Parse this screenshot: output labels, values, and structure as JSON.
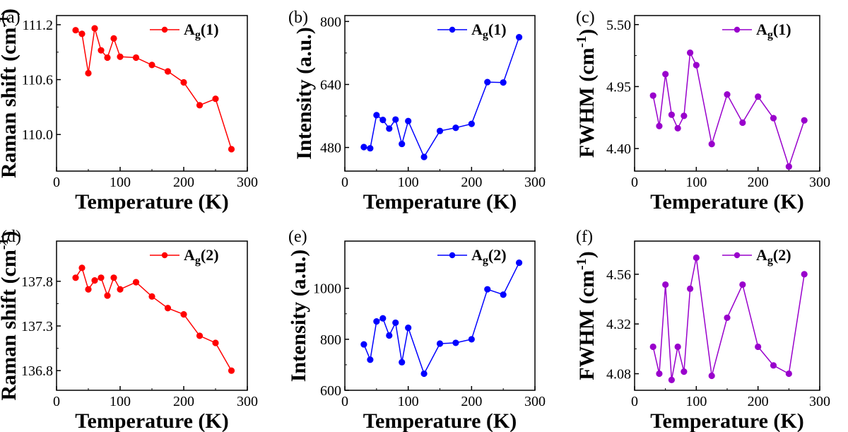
{
  "chart_data": [
    {
      "panel": "(a)",
      "type": "line",
      "title": "",
      "xlabel": "Temperature (K)",
      "ylabel": "Raman shift (cm",
      "ylabel_sup": "-1",
      "ylabel_suffix": ")",
      "xlim": [
        0,
        300
      ],
      "ylim": [
        109.6,
        111.3
      ],
      "xticks": [
        0,
        100,
        200,
        300
      ],
      "yticks": [
        110.0,
        110.6,
        111.2
      ],
      "ytick_labels": [
        "110.0",
        "110.6",
        "111.2"
      ],
      "legend": {
        "main": "A",
        "sub": "g",
        "suffix": "(1)",
        "position": "top-right"
      },
      "color": "#ff0000",
      "x": [
        30,
        40,
        50,
        60,
        70,
        80,
        90,
        100,
        125,
        150,
        175,
        200,
        225,
        250,
        275
      ],
      "y": [
        111.14,
        111.1,
        110.67,
        111.16,
        110.92,
        110.84,
        111.05,
        110.85,
        110.84,
        110.76,
        110.69,
        110.57,
        110.32,
        110.39,
        109.84
      ]
    },
    {
      "panel": "(b)",
      "type": "line",
      "title": "",
      "xlabel": "Temperature (K)",
      "ylabel": "Intensity (a.u.)",
      "ylabel_sup": "",
      "ylabel_suffix": "",
      "xlim": [
        0,
        300
      ],
      "ylim": [
        420,
        815
      ],
      "xticks": [
        0,
        100,
        200,
        300
      ],
      "yticks": [
        480,
        640,
        800
      ],
      "ytick_labels": [
        "480",
        "640",
        "800"
      ],
      "legend": {
        "main": "A",
        "sub": "g",
        "suffix": "(1)",
        "position": "top-right"
      },
      "color": "#0000ff",
      "x": [
        30,
        40,
        50,
        60,
        70,
        80,
        90,
        100,
        125,
        150,
        175,
        200,
        225,
        250,
        275
      ],
      "y": [
        481,
        478,
        562,
        550,
        528,
        551,
        489,
        547,
        456,
        522,
        530,
        540,
        646,
        645,
        760
      ]
    },
    {
      "panel": "(c)",
      "type": "line",
      "title": "",
      "xlabel": "Temperature (K)",
      "ylabel": "FWHM (cm",
      "ylabel_sup": "-1",
      "ylabel_suffix": ")",
      "xlim": [
        0,
        300
      ],
      "ylim": [
        4.2,
        5.58
      ],
      "xticks": [
        0,
        100,
        200,
        300
      ],
      "yticks": [
        4.4,
        4.95,
        5.5
      ],
      "ytick_labels": [
        "4.40",
        "4.95",
        "5.50"
      ],
      "legend": {
        "main": "A",
        "sub": "g",
        "suffix": "(1)",
        "position": "top-right"
      },
      "color": "#9900cc",
      "x": [
        30,
        40,
        50,
        60,
        70,
        80,
        90,
        100,
        125,
        150,
        175,
        200,
        225,
        250,
        275
      ],
      "y": [
        4.87,
        4.6,
        5.06,
        4.7,
        4.58,
        4.69,
        5.25,
        5.14,
        4.44,
        4.88,
        4.63,
        4.86,
        4.67,
        4.24,
        4.65
      ]
    },
    {
      "panel": "(d)",
      "type": "line",
      "title": "",
      "xlabel": "Temperature (K)",
      "ylabel": "Raman shift (cm",
      "ylabel_sup": "-1",
      "ylabel_suffix": ")",
      "xlim": [
        0,
        300
      ],
      "ylim": [
        136.58,
        138.25
      ],
      "xticks": [
        0,
        100,
        200,
        300
      ],
      "yticks": [
        136.8,
        137.3,
        137.8
      ],
      "ytick_labels": [
        "136.8",
        "137.3",
        "137.8"
      ],
      "legend": {
        "main": "A",
        "sub": "g",
        "suffix": "(2)",
        "position": "top-right"
      },
      "color": "#ff0000",
      "x": [
        30,
        40,
        50,
        60,
        70,
        80,
        90,
        100,
        125,
        150,
        175,
        200,
        225,
        250,
        275
      ],
      "y": [
        137.84,
        137.95,
        137.71,
        137.81,
        137.84,
        137.64,
        137.84,
        137.71,
        137.79,
        137.63,
        137.5,
        137.43,
        137.19,
        137.11,
        136.8
      ]
    },
    {
      "panel": "(e)",
      "type": "line",
      "title": "",
      "xlabel": "Temperature (K)",
      "ylabel": "Intensity (a.u.)",
      "ylabel_sup": "",
      "ylabel_suffix": "",
      "xlim": [
        0,
        300
      ],
      "ylim": [
        600,
        1185
      ],
      "xticks": [
        0,
        100,
        200,
        300
      ],
      "yticks": [
        600,
        800,
        1000
      ],
      "ytick_labels": [
        "600",
        "800",
        "1000"
      ],
      "legend": {
        "main": "A",
        "sub": "g",
        "suffix": "(2)",
        "position": "top-right"
      },
      "color": "#0000ff",
      "x": [
        30,
        40,
        50,
        60,
        70,
        80,
        90,
        100,
        125,
        150,
        175,
        200,
        225,
        250,
        275
      ],
      "y": [
        780,
        720,
        870,
        882,
        815,
        865,
        710,
        845,
        665,
        783,
        786,
        800,
        996,
        975,
        1100
      ]
    },
    {
      "panel": "(f)",
      "type": "line",
      "title": "",
      "xlabel": "Temperature (K)",
      "ylabel": "FWHM (cm",
      "ylabel_sup": "-1",
      "ylabel_suffix": ")",
      "xlim": [
        0,
        300
      ],
      "ylim": [
        4.0,
        4.72
      ],
      "xticks": [
        0,
        100,
        200,
        300
      ],
      "yticks": [
        4.08,
        4.32,
        4.56
      ],
      "ytick_labels": [
        "4.08",
        "4.32",
        "4.56"
      ],
      "legend": {
        "main": "A",
        "sub": "g",
        "suffix": "(2)",
        "position": "top-right"
      },
      "color": "#9900cc",
      "x": [
        30,
        40,
        50,
        60,
        70,
        80,
        90,
        100,
        125,
        150,
        175,
        200,
        225,
        250,
        275
      ],
      "y": [
        4.21,
        4.08,
        4.51,
        4.05,
        4.21,
        4.09,
        4.49,
        4.64,
        4.07,
        4.35,
        4.51,
        4.21,
        4.12,
        4.08,
        4.56
      ]
    }
  ]
}
